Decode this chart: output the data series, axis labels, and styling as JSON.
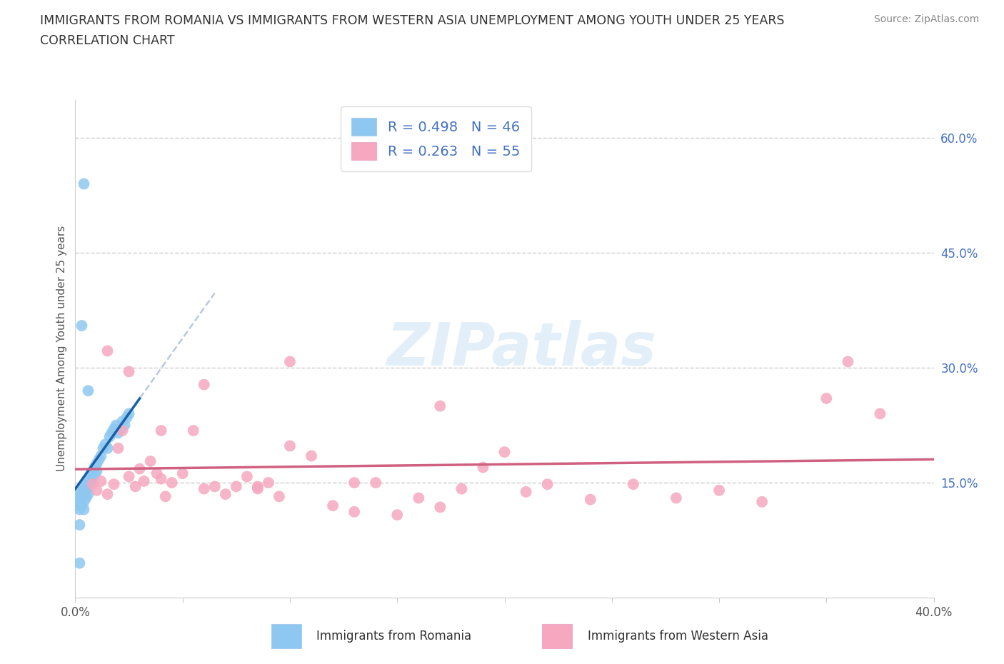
{
  "title_line1": "IMMIGRANTS FROM ROMANIA VS IMMIGRANTS FROM WESTERN ASIA UNEMPLOYMENT AMONG YOUTH UNDER 25 YEARS",
  "title_line2": "CORRELATION CHART",
  "source_text": "Source: ZipAtlas.com",
  "ylabel": "Unemployment Among Youth under 25 years",
  "xlim": [
    0.0,
    0.4
  ],
  "ylim": [
    0.0,
    0.65
  ],
  "xtick_vals": [
    0.0,
    0.05,
    0.1,
    0.15,
    0.2,
    0.25,
    0.3,
    0.35,
    0.4
  ],
  "ytick_right_vals": [
    0.15,
    0.3,
    0.45,
    0.6
  ],
  "ytick_right_labels": [
    "15.0%",
    "30.0%",
    "45.0%",
    "60.0%"
  ],
  "color_romania": "#8ec8f0",
  "color_western_asia": "#f5a8c0",
  "color_regression_romania": "#1a5fa8",
  "color_regression_western_asia": "#d06080",
  "color_dashed": "#a8bcd8",
  "R_romania": "0.498",
  "N_romania": "46",
  "R_western_asia": "0.263",
  "N_western_asia": "55",
  "watermark_text": "ZIPatlas",
  "legend_label_romania": "Immigrants from Romania",
  "legend_label_western_asia": "Immigrants from Western Asia",
  "romania_x": [
    0.001,
    0.001,
    0.002,
    0.002,
    0.002,
    0.003,
    0.003,
    0.003,
    0.004,
    0.004,
    0.004,
    0.005,
    0.005,
    0.005,
    0.006,
    0.006,
    0.006,
    0.007,
    0.007,
    0.008,
    0.008,
    0.009,
    0.009,
    0.01,
    0.01,
    0.011,
    0.012,
    0.013,
    0.014,
    0.015,
    0.016,
    0.017,
    0.018,
    0.019,
    0.02,
    0.021,
    0.022,
    0.023,
    0.024,
    0.025,
    0.003,
    0.004,
    0.006,
    0.002,
    0.004,
    0.002
  ],
  "romania_y": [
    0.12,
    0.13,
    0.125,
    0.135,
    0.115,
    0.13,
    0.14,
    0.12,
    0.135,
    0.145,
    0.125,
    0.14,
    0.15,
    0.13,
    0.145,
    0.155,
    0.135,
    0.15,
    0.16,
    0.155,
    0.165,
    0.17,
    0.16,
    0.175,
    0.165,
    0.18,
    0.185,
    0.195,
    0.2,
    0.195,
    0.21,
    0.215,
    0.22,
    0.225,
    0.215,
    0.22,
    0.23,
    0.225,
    0.235,
    0.24,
    0.355,
    0.54,
    0.27,
    0.045,
    0.115,
    0.095
  ],
  "western_asia_x": [
    0.008,
    0.01,
    0.012,
    0.015,
    0.018,
    0.02,
    0.022,
    0.025,
    0.028,
    0.03,
    0.032,
    0.035,
    0.038,
    0.04,
    0.042,
    0.045,
    0.05,
    0.055,
    0.06,
    0.065,
    0.07,
    0.075,
    0.08,
    0.085,
    0.09,
    0.095,
    0.1,
    0.11,
    0.12,
    0.13,
    0.14,
    0.15,
    0.16,
    0.17,
    0.18,
    0.19,
    0.2,
    0.21,
    0.22,
    0.24,
    0.26,
    0.28,
    0.3,
    0.32,
    0.35,
    0.375,
    0.015,
    0.025,
    0.04,
    0.06,
    0.085,
    0.1,
    0.13,
    0.17,
    0.36
  ],
  "western_asia_y": [
    0.148,
    0.14,
    0.152,
    0.135,
    0.148,
    0.195,
    0.218,
    0.158,
    0.145,
    0.168,
    0.152,
    0.178,
    0.162,
    0.155,
    0.132,
    0.15,
    0.162,
    0.218,
    0.142,
    0.145,
    0.135,
    0.145,
    0.158,
    0.142,
    0.15,
    0.132,
    0.198,
    0.185,
    0.12,
    0.112,
    0.15,
    0.108,
    0.13,
    0.118,
    0.142,
    0.17,
    0.19,
    0.138,
    0.148,
    0.128,
    0.148,
    0.13,
    0.14,
    0.125,
    0.26,
    0.24,
    0.322,
    0.295,
    0.218,
    0.278,
    0.145,
    0.308,
    0.15,
    0.25,
    0.308
  ],
  "background_color": "#ffffff",
  "grid_color": "#cccccc",
  "grid_linestyle": "--",
  "title_color": "#333333",
  "ylabel_color": "#555555",
  "ytick_color": "#4472c4",
  "xtick_color": "#555555"
}
